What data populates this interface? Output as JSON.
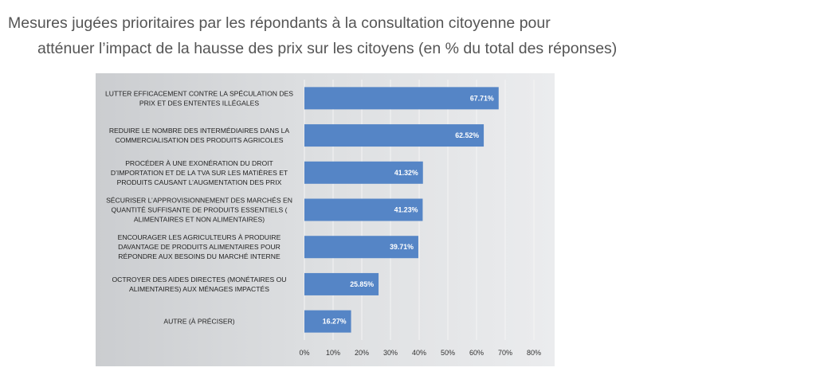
{
  "chart_data": {
    "type": "bar",
    "orientation": "horizontal",
    "title": "Mesures jugées prioritaires par les répondants à la consultation citoyenne pour atténuer l’impact de la hausse des prix sur les citoyens (en % du total des réponses)",
    "title_lines": [
      "Mesures jugées prioritaires par les répondants à la consultation citoyenne pour",
      "atténuer l’impact de la hausse des prix sur les citoyens (en % du total des réponses)"
    ],
    "categories": [
      [
        "LUTTER EFFICACEMENT CONTRE LA SPÉCULATION DES",
        "PRIX ET DES ENTENTES ILLÉGALES"
      ],
      [
        "REDUIRE LE NOMBRE DES INTERMÉDIAIRES DANS LA",
        "COMMERCIALISATION DES PRODUITS AGRICOLES"
      ],
      [
        "PROCÉDER À UNE EXONÉRATION DU DROIT",
        "D’IMPORTATION ET DE LA TVA SUR LES MATIÈRES ET",
        "PRODUITS CAUSANT L’AUGMENTATION DES PRIX"
      ],
      [
        "SÉCURISER L’APPROVISIONNEMENT DES MARCHÉS EN",
        "QUANTITÉ SUFFISANTE DE PRODUITS ESSENTIELS (",
        "ALIMENTAIRES ET NON ALIMENTAIRES)"
      ],
      [
        "ENCOURAGER LES AGRICULTEURS À PRODUIRE",
        "DAVANTAGE DE PRODUITS ALIMENTAIRES POUR",
        "RÉPONDRE AUX BESOINS DU MARCHÉ INTERNE"
      ],
      [
        "OCTROYER DES AIDES DIRECTES (MONÉTAIRES OU",
        "ALIMENTAIRES) AUX MÉNAGES IMPACTÉS"
      ],
      [
        "AUTRE (À PRÉCISER)"
      ]
    ],
    "values": [
      67.71,
      62.52,
      41.32,
      41.23,
      39.71,
      25.85,
      16.27
    ],
    "value_labels": [
      "67.71%",
      "62.52%",
      "41.32%",
      "41.23%",
      "39.71%",
      "25.85%",
      "16.27%"
    ],
    "xlim": [
      0,
      80
    ],
    "x_ticks": [
      "0%",
      "10%",
      "20%",
      "30%",
      "40%",
      "50%",
      "60%",
      "70%",
      "80%"
    ],
    "grid": true,
    "legend": "none",
    "bar_color": "#5585c6",
    "value_label_color": "#ffffff"
  }
}
